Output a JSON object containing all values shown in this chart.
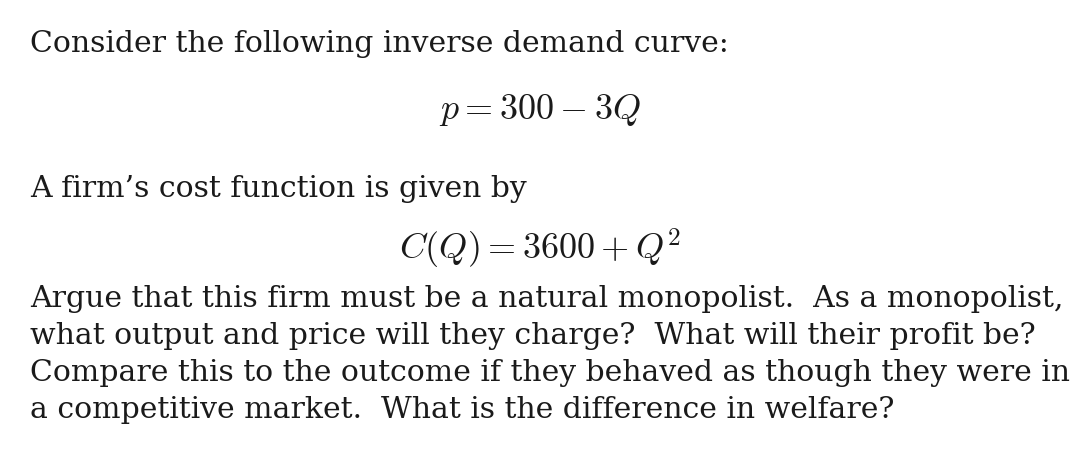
{
  "background_color": "#ffffff",
  "line1": "Consider the following inverse demand curve:",
  "line2_math": "$p = 300 - 3Q$",
  "line3": "A firm’s cost function is given by",
  "line4_math": "$C(Q) = 3600 + Q^2$",
  "line5": "Argue that this firm must be a natural monopolist.  As a monopolist,",
  "line6": "what output and price will they charge?  What will their profit be?",
  "line7": "Compare this to the outcome if they behaved as though they were in",
  "line8": "a competitive market.  What is the difference in welfare?",
  "text_color": "#1a1a1a",
  "font_size_body": 21.5,
  "font_size_math": 26,
  "figwidth": 10.8,
  "figheight": 4.77
}
